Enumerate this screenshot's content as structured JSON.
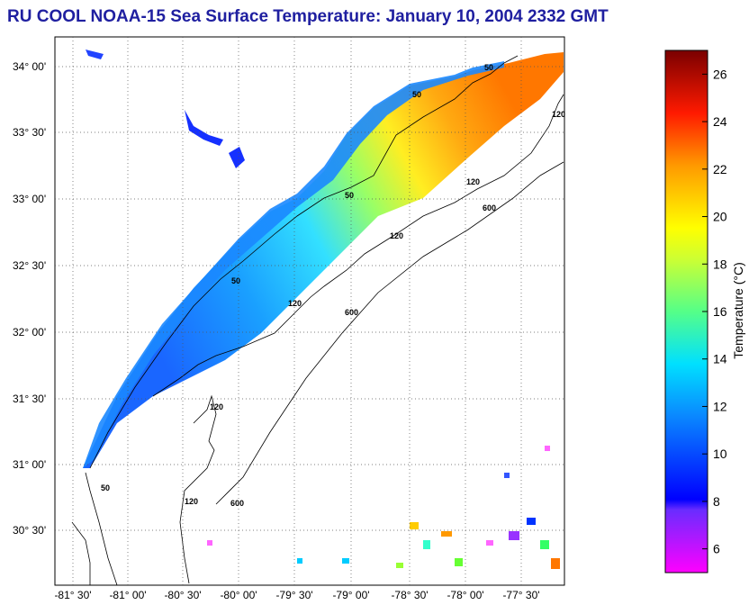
{
  "title": "RU COOL  NOAA-15  Sea Surface Temperature:  January 10, 2004 2332 GMT",
  "lat_labels": [
    "34° 00'",
    "33° 30'",
    "33° 00'",
    "32° 30'",
    "32° 00'",
    "31° 30'",
    "31° 00'",
    "30° 30'"
  ],
  "lon_labels": [
    "-81° 30'",
    "-81° 00'",
    "-80° 30'",
    "-80° 00'",
    "-79° 30'",
    "-79° 00'",
    "-78° 30'",
    "-78° 00'",
    "-77° 30'"
  ],
  "colorbar": {
    "title": "Temperature (°C)",
    "ticks": [
      "26",
      "24",
      "22",
      "20",
      "18",
      "16",
      "14",
      "12",
      "10",
      "8",
      "6"
    ],
    "min": 5,
    "max": 27,
    "colors": [
      "#ff00ff",
      "#0000ff",
      "#00aaff",
      "#00ffff",
      "#66ff33",
      "#ffff00",
      "#ff9900",
      "#ff0000",
      "#800000"
    ]
  },
  "contours": [
    "50",
    "50",
    "50",
    "50",
    "50",
    "120",
    "120",
    "120",
    "120",
    "120",
    "120",
    "600",
    "600",
    "600"
  ]
}
